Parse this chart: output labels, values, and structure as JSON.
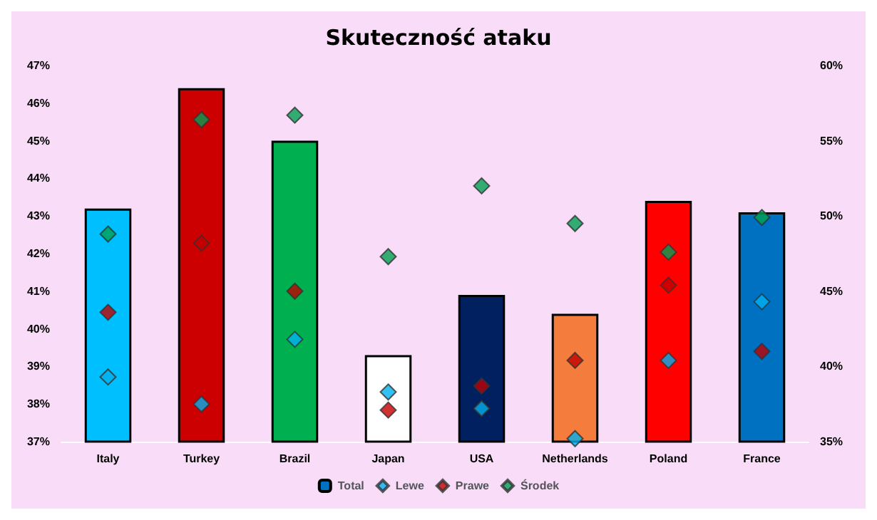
{
  "chart_data": {
    "type": "bar",
    "title": "Skuteczność ataku",
    "categories": [
      "Italy",
      "Turkey",
      "Brazil",
      "Japan",
      "USA",
      "Netherlands",
      "Poland",
      "France"
    ],
    "series": [
      {
        "name": "Total",
        "color": "#0070c0",
        "colors": [
          "#00bfff",
          "#cc0000",
          "#00b050",
          "#ffffff",
          "#002060",
          "#f47c3c",
          "#ff0000",
          "#0070c0"
        ],
        "values": [
          43.2,
          46.4,
          45.0,
          39.3,
          40.9,
          40.4,
          43.4,
          43.1
        ]
      },
      {
        "name": "Lewe",
        "type": "scatter",
        "axis": "y2",
        "marker": "diamond",
        "color": "#00b0f0",
        "values": [
          39.3,
          37.5,
          41.8,
          38.3,
          37.2,
          35.2,
          40.4,
          44.3
        ]
      },
      {
        "name": "Prawe",
        "type": "scatter",
        "axis": "y2",
        "marker": "diamond",
        "color": "#c00000",
        "values": [
          43.6,
          48.2,
          45.0,
          37.1,
          38.7,
          40.4,
          45.4,
          41.0
        ]
      },
      {
        "name": "Środek",
        "type": "scatter",
        "axis": "y2",
        "marker": "diamond",
        "color": "#00a050",
        "values": [
          48.8,
          56.4,
          56.7,
          47.3,
          52.0,
          49.5,
          47.6,
          49.9
        ]
      }
    ],
    "ylim": [
      37,
      47
    ],
    "yticks": [
      {
        "value": 37,
        "label": "37%"
      },
      {
        "value": 38,
        "label": "38%"
      },
      {
        "value": 39,
        "label": "39%"
      },
      {
        "value": 40,
        "label": "40%"
      },
      {
        "value": 41,
        "label": "41%"
      },
      {
        "value": 42,
        "label": "42%"
      },
      {
        "value": 43,
        "label": "43%"
      },
      {
        "value": 44,
        "label": "44%"
      },
      {
        "value": 45,
        "label": "45%"
      },
      {
        "value": 46,
        "label": "46%"
      },
      {
        "value": 47,
        "label": "47%"
      }
    ],
    "y2lim": [
      35,
      60
    ],
    "y2ticks": [
      {
        "value": 35,
        "label": "35%"
      },
      {
        "value": 40,
        "label": "40%"
      },
      {
        "value": 45,
        "label": "45%"
      },
      {
        "value": 50,
        "label": "50%"
      },
      {
        "value": 55,
        "label": "55%"
      },
      {
        "value": 60,
        "label": "60%"
      }
    ],
    "grid": false,
    "legend": "bottom"
  }
}
